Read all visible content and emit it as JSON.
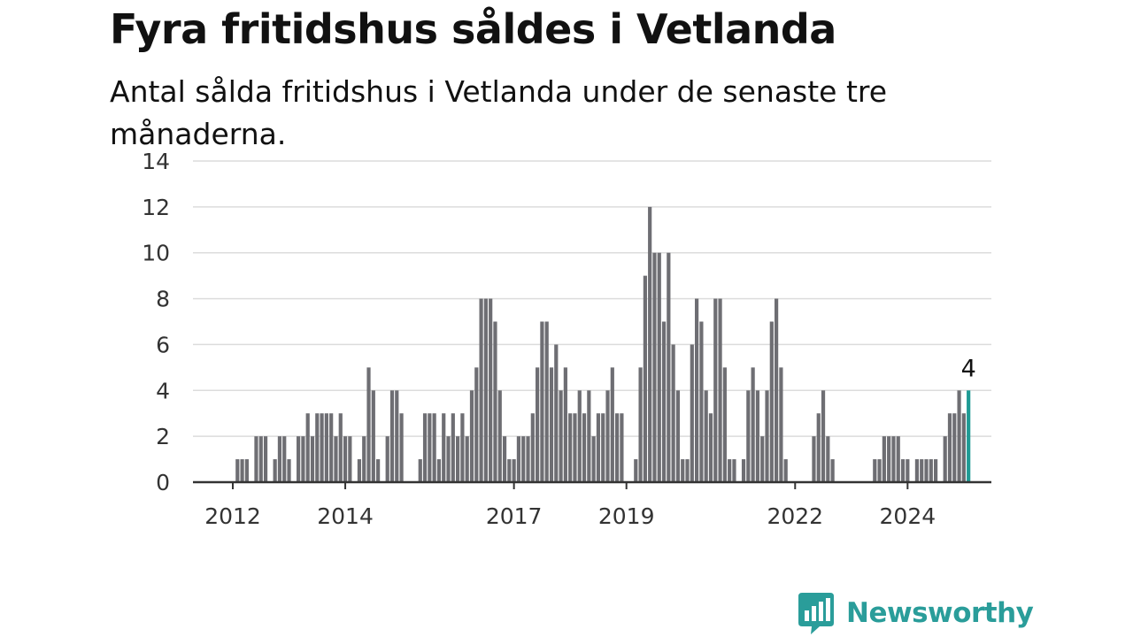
{
  "header": {
    "title": "Fyra fritidshus såldes i Vetlanda",
    "subtitle": "Antal sålda fritidshus i Vetlanda under de senaste tre månaderna."
  },
  "chart_data": {
    "type": "bar",
    "title": "Fyra fritidshus såldes i Vetlanda",
    "subtitle": "Antal sålda fritidshus i Vetlanda under de senaste tre månaderna.",
    "xlabel": "",
    "ylabel": "",
    "ylim": [
      0,
      14
    ],
    "y_ticks": [
      "0",
      "2",
      "4",
      "6",
      "8",
      "10",
      "12",
      "14"
    ],
    "x_ticks": [
      {
        "label": "2012",
        "month": "2012-01"
      },
      {
        "label": "2014",
        "month": "2014-01"
      },
      {
        "label": "2017",
        "month": "2017-01"
      },
      {
        "label": "2019",
        "month": "2019-01"
      },
      {
        "label": "2022",
        "month": "2022-01"
      },
      {
        "label": "2024",
        "month": "2024-01"
      }
    ],
    "grid": true,
    "legend": "none",
    "start_month": "2011-01",
    "values": [
      0,
      0,
      0,
      0,
      0,
      0,
      0,
      0,
      0,
      0,
      0,
      0,
      0,
      1,
      1,
      1,
      0,
      2,
      2,
      2,
      0,
      1,
      2,
      2,
      1,
      0,
      2,
      2,
      3,
      2,
      3,
      3,
      3,
      3,
      2,
      3,
      2,
      2,
      0,
      1,
      2,
      5,
      4,
      1,
      0,
      2,
      4,
      4,
      3,
      0,
      0,
      0,
      1,
      3,
      3,
      3,
      1,
      3,
      2,
      3,
      2,
      3,
      2,
      4,
      5,
      8,
      8,
      8,
      7,
      4,
      2,
      1,
      1,
      2,
      2,
      2,
      3,
      5,
      7,
      7,
      5,
      6,
      4,
      5,
      3,
      3,
      4,
      3,
      4,
      2,
      3,
      3,
      4,
      5,
      3,
      3,
      0,
      0,
      1,
      5,
      9,
      12,
      10,
      10,
      7,
      10,
      6,
      4,
      1,
      1,
      6,
      8,
      7,
      4,
      3,
      8,
      8,
      5,
      1,
      1,
      0,
      1,
      4,
      5,
      4,
      2,
      4,
      7,
      8,
      5,
      1,
      0,
      0,
      0,
      0,
      0,
      2,
      3,
      4,
      2,
      1,
      0,
      0,
      0,
      0,
      0,
      0,
      0,
      0,
      1,
      1,
      2,
      2,
      2,
      2,
      1,
      1,
      0,
      1,
      1,
      1,
      1,
      1,
      0,
      2,
      3,
      3,
      4,
      3,
      4
    ],
    "highlight": {
      "index": 169,
      "value": 4,
      "label": "4"
    },
    "colors": {
      "bar": "#6e6e73",
      "highlight": "#1f9a94",
      "grid": "#dcdcdc",
      "axis": "#333333"
    }
  },
  "branding": {
    "logo_text": "Newsworthy",
    "logo_icon": "newsworthy-logo-icon",
    "color": "#2a9d9a"
  }
}
